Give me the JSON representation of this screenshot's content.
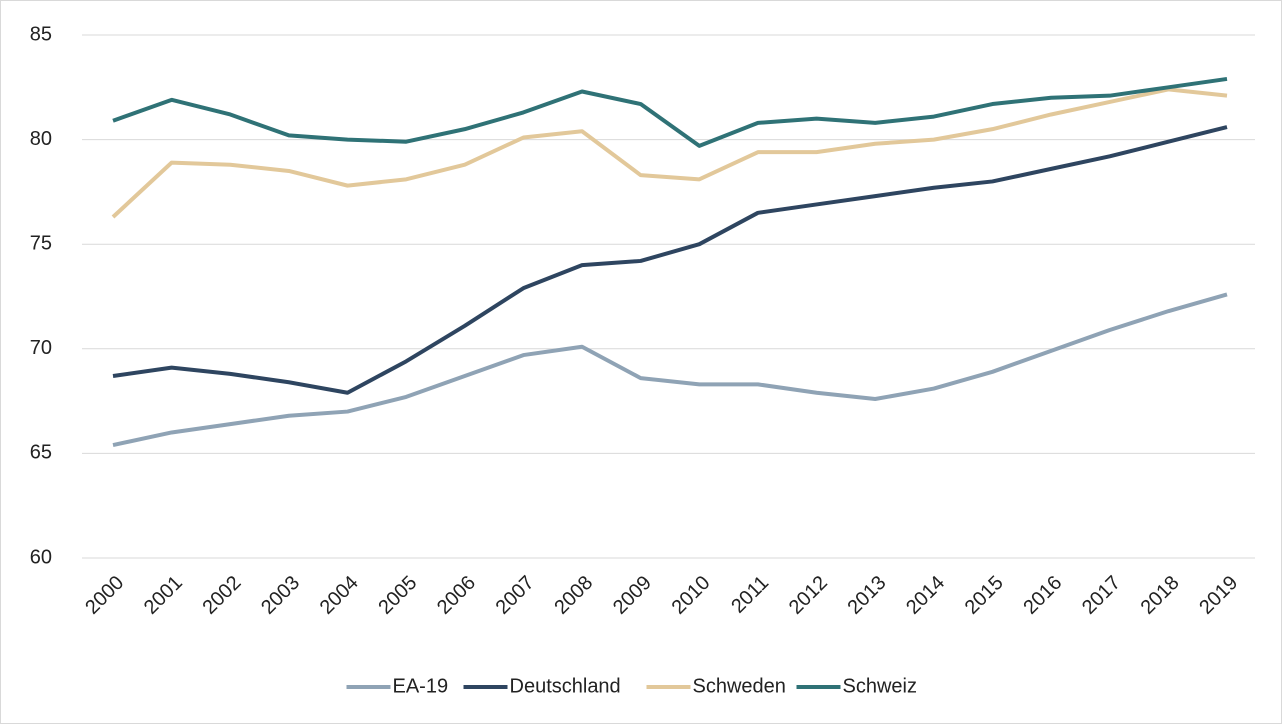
{
  "chart_data": {
    "type": "line",
    "categories": [
      "2000",
      "2001",
      "2002",
      "2003",
      "2004",
      "2005",
      "2006",
      "2007",
      "2008",
      "2009",
      "2010",
      "2011",
      "2012",
      "2013",
      "2014",
      "2015",
      "2016",
      "2017",
      "2018",
      "2019"
    ],
    "series": [
      {
        "name": "EA-19",
        "color": "#8fa3b5",
        "values": [
          65.4,
          66.0,
          66.4,
          66.8,
          67.0,
          67.7,
          68.7,
          69.7,
          70.1,
          68.6,
          68.3,
          68.3,
          67.9,
          67.6,
          68.1,
          68.9,
          69.9,
          70.9,
          71.8,
          72.6
        ]
      },
      {
        "name": "Deutschland",
        "color": "#2e4560",
        "values": [
          68.7,
          69.1,
          68.8,
          68.4,
          67.9,
          69.4,
          71.1,
          72.9,
          74.0,
          74.2,
          75.0,
          76.5,
          76.9,
          77.3,
          77.7,
          78.0,
          78.6,
          79.2,
          79.9,
          80.6
        ]
      },
      {
        "name": "Schweden",
        "color": "#e2c89a",
        "values": [
          76.3,
          78.9,
          78.8,
          78.5,
          77.8,
          78.1,
          78.8,
          80.1,
          80.4,
          78.3,
          78.1,
          79.4,
          79.4,
          79.8,
          80.0,
          80.5,
          81.2,
          81.8,
          82.4,
          82.1
        ]
      },
      {
        "name": "Schweiz",
        "color": "#2f7276",
        "values": [
          80.9,
          81.9,
          81.2,
          80.2,
          80.0,
          79.9,
          80.5,
          81.3,
          82.3,
          81.7,
          79.7,
          80.8,
          81.0,
          80.8,
          81.1,
          81.7,
          82.0,
          82.1,
          82.5,
          82.9
        ]
      }
    ],
    "ylim": [
      60,
      85
    ],
    "yticks": [
      60,
      65,
      70,
      75,
      80,
      85
    ],
    "grid": true,
    "legend": "bottom"
  }
}
